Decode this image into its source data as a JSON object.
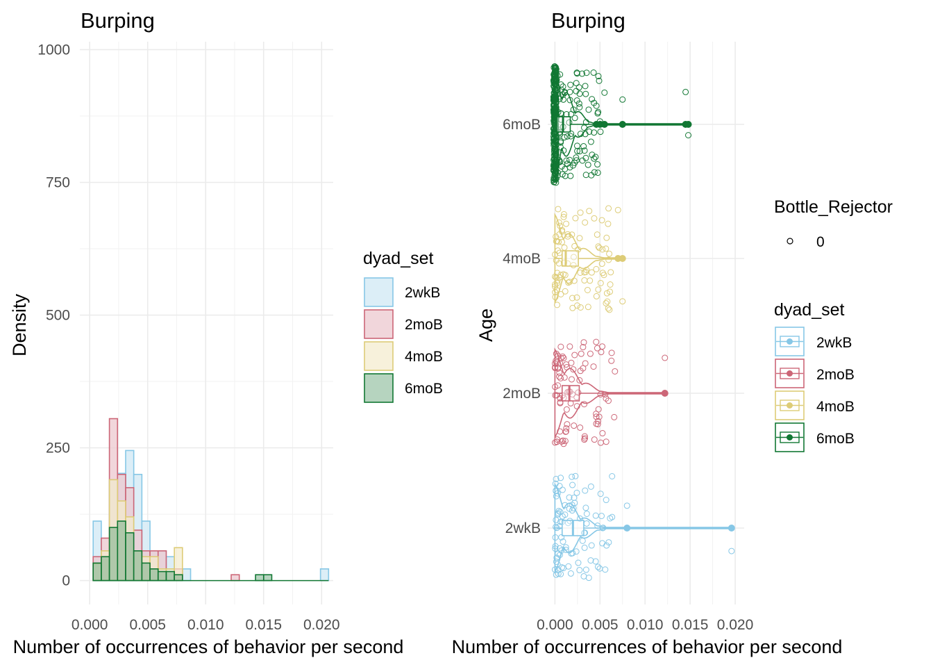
{
  "chart_data": [
    {
      "type": "histogram",
      "title": "Burping",
      "xlabel": "Number of occurrences of behavior per second",
      "ylabel": "Density",
      "xlim": [
        -0.00085,
        0.021
      ],
      "ylim": [
        -45,
        1015
      ],
      "x_ticks": [
        "0.000",
        "0.005",
        "0.010",
        "0.015",
        "0.020"
      ],
      "x_tick_values": [
        0,
        0.005,
        0.01,
        0.015,
        0.02
      ],
      "y_ticks": [
        "0",
        "250",
        "500",
        "750",
        "1000"
      ],
      "y_tick_values": [
        0,
        250,
        500,
        750,
        1000
      ],
      "grid": true,
      "legend": {
        "title": "dyad_set",
        "position": "right"
      },
      "bin_width": 0.0007,
      "series": [
        {
          "name": "2wkB",
          "color": "#86c7e6",
          "fill": "#d8ecf6",
          "fill_opacity": 0.9,
          "bins": [
            [
              0.0003,
              112
            ],
            [
              0.0017,
              190
            ],
            [
              0.0024,
              202
            ],
            [
              0.0031,
              245
            ],
            [
              0.0038,
              200
            ],
            [
              0.0045,
              112
            ],
            [
              0.0052,
              56
            ],
            [
              0.0059,
              56
            ],
            [
              0.0066,
              45
            ],
            [
              0.008,
              22
            ],
            [
              0.0199,
              22
            ]
          ]
        },
        {
          "name": "2moB",
          "color": "#cc6677",
          "fill": "#ecc8cf",
          "fill_opacity": 0.75,
          "bins": [
            [
              0.0003,
              45
            ],
            [
              0.001,
              80
            ],
            [
              0.0017,
              305
            ],
            [
              0.0024,
              200
            ],
            [
              0.0031,
              175
            ],
            [
              0.0038,
              95
            ],
            [
              0.0045,
              56
            ],
            [
              0.0052,
              56
            ],
            [
              0.0059,
              56
            ],
            [
              0.0073,
              22
            ],
            [
              0.0122,
              11
            ]
          ]
        },
        {
          "name": "4moB",
          "color": "#ddcc77",
          "fill": "#f3ebcc",
          "fill_opacity": 0.7,
          "bins": [
            [
              0.0003,
              32
            ],
            [
              0.001,
              56
            ],
            [
              0.0017,
              190
            ],
            [
              0.0024,
              150
            ],
            [
              0.0031,
              120
            ],
            [
              0.0038,
              56
            ],
            [
              0.0045,
              45
            ],
            [
              0.0052,
              45
            ],
            [
              0.0059,
              22
            ],
            [
              0.0066,
              22
            ],
            [
              0.0073,
              62
            ]
          ]
        },
        {
          "name": "6moB",
          "color": "#117733",
          "fill": "#7ab08a",
          "fill_opacity": 0.55,
          "bins": [
            [
              0.0003,
              33
            ],
            [
              0.001,
              45
            ],
            [
              0.0017,
              100
            ],
            [
              0.0024,
              112
            ],
            [
              0.0031,
              90
            ],
            [
              0.0038,
              56
            ],
            [
              0.0045,
              33
            ],
            [
              0.0052,
              22
            ],
            [
              0.0059,
              17
            ],
            [
              0.0066,
              17
            ],
            [
              0.0073,
              11
            ],
            [
              0.0143,
              11
            ],
            [
              0.015,
              11
            ]
          ]
        }
      ]
    },
    {
      "type": "violin_box_jitter",
      "title": "Burping",
      "xlabel": "Number of occurrences of behavior per second",
      "ylabel": "Age",
      "xlim": [
        -0.0008,
        0.021
      ],
      "x_ticks": [
        "0.000",
        "0.005",
        "0.010",
        "0.015",
        "0.020"
      ],
      "x_tick_values": [
        0,
        0.005,
        0.01,
        0.015,
        0.02
      ],
      "categories": [
        "2wkB",
        "2moB",
        "4moB",
        "6moB"
      ],
      "grid": true,
      "legend": [
        {
          "title": "Bottle_Rejector",
          "labels": [
            "0"
          ],
          "position": "right"
        },
        {
          "title": "dyad_set",
          "labels": [
            "2wkB",
            "2moB",
            "4moB",
            "6moB"
          ],
          "position": "right"
        }
      ],
      "series": [
        {
          "name": "2wkB",
          "color": "#86c7e6",
          "q1": 0.0008,
          "median": 0.002,
          "q3": 0.0032,
          "whisker_low": 0.0,
          "whisker_high": 0.0052,
          "mean": 0.002,
          "outliers": [
            0.008,
            0.0196
          ]
        },
        {
          "name": "2moB",
          "color": "#cc6677",
          "q1": 0.0008,
          "median": 0.0016,
          "q3": 0.0027,
          "whisker_low": 0.0,
          "whisker_high": 0.0055,
          "mean": 0.0016,
          "outliers": [
            0.0122
          ]
        },
        {
          "name": "4moB",
          "color": "#ddcc77",
          "q1": 0.0008,
          "median": 0.0012,
          "q3": 0.0026,
          "whisker_low": 0.0,
          "whisker_high": 0.005,
          "mean": 0.0012,
          "outliers": [
            0.007,
            0.0075
          ]
        },
        {
          "name": "6moB",
          "color": "#117733",
          "q1": 0.0002,
          "median": 0.0009,
          "q3": 0.0017,
          "whisker_low": 0.0,
          "whisker_high": 0.004,
          "mean": 0.0009,
          "outliers": [
            0.0046,
            0.005,
            0.0055,
            0.0075,
            0.0145,
            0.0148
          ]
        }
      ]
    }
  ]
}
